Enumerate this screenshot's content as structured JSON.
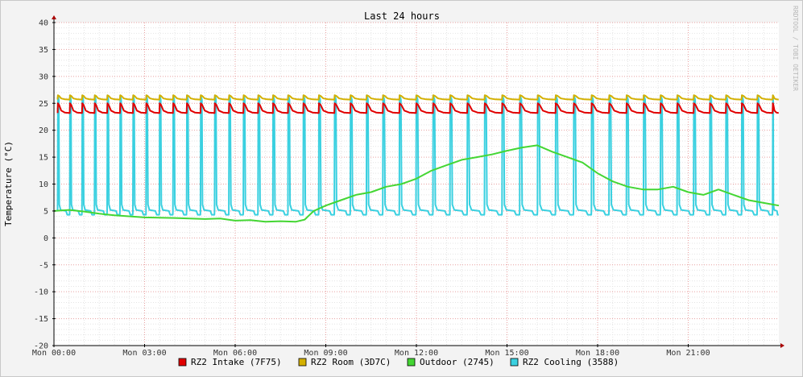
{
  "chart_data": {
    "type": "line",
    "title": "Last 24 hours",
    "ylabel": "Temperature (°C)",
    "watermark": "RRDTOOL / TOBI OETIKER",
    "ylim": [
      -20,
      40
    ],
    "y_ticks": [
      40,
      35,
      30,
      25,
      20,
      15,
      10,
      5,
      0,
      -5,
      -10,
      -15,
      -20
    ],
    "x_range_hours": [
      0,
      24
    ],
    "x_ticks": [
      {
        "h": 0,
        "label": "Mon 00:00"
      },
      {
        "h": 3,
        "label": "Mon 03:00"
      },
      {
        "h": 6,
        "label": "Mon 06:00"
      },
      {
        "h": 9,
        "label": "Mon 09:00"
      },
      {
        "h": 12,
        "label": "Mon 12:00"
      },
      {
        "h": 15,
        "label": "Mon 15:00"
      },
      {
        "h": 18,
        "label": "Mon 18:00"
      },
      {
        "h": 21,
        "label": "Mon 21:00"
      }
    ],
    "grid": true,
    "legend_position": "bottom",
    "series": [
      {
        "name": "RZ2 Intake (7F75)",
        "color": "#e00000",
        "sawtooth": {
          "cycle_hours": [
            [
              0,
              0.4
            ],
            [
              11,
              0.55
            ],
            [
              16.5,
              0.6
            ],
            [
              24,
              0.5
            ]
          ],
          "peak": 25.0,
          "base": 23.2
        }
      },
      {
        "name": "RZ2 Room (3D7C)",
        "color": "#d4b000",
        "sawtooth": {
          "cycle_hours": [
            [
              0,
              0.4
            ],
            [
              11,
              0.55
            ],
            [
              16.5,
              0.6
            ],
            [
              24,
              0.5
            ]
          ],
          "peak": 26.5,
          "base": 25.7
        }
      },
      {
        "name": "Outdoor (2745)",
        "color": "#44d633",
        "points": [
          [
            0,
            5.0
          ],
          [
            0.5,
            5.2
          ],
          [
            1,
            4.9
          ],
          [
            1.5,
            4.5
          ],
          [
            2,
            4.2
          ],
          [
            3,
            3.8
          ],
          [
            4,
            3.7
          ],
          [
            5,
            3.5
          ],
          [
            5.5,
            3.6
          ],
          [
            6,
            3.2
          ],
          [
            6.5,
            3.3
          ],
          [
            7,
            3.0
          ],
          [
            7.5,
            3.1
          ],
          [
            8,
            3.0
          ],
          [
            8.3,
            3.4
          ],
          [
            8.6,
            5.0
          ],
          [
            9,
            6.0
          ],
          [
            9.5,
            7.0
          ],
          [
            10,
            8.0
          ],
          [
            10.5,
            8.5
          ],
          [
            11,
            9.5
          ],
          [
            11.5,
            10.0
          ],
          [
            12,
            11.0
          ],
          [
            12.5,
            12.5
          ],
          [
            13,
            13.5
          ],
          [
            13.5,
            14.5
          ],
          [
            14,
            15.0
          ],
          [
            14.5,
            15.5
          ],
          [
            15,
            16.2
          ],
          [
            15.5,
            16.8
          ],
          [
            16,
            17.2
          ],
          [
            16.5,
            16.0
          ],
          [
            17,
            15.0
          ],
          [
            17.5,
            14.0
          ],
          [
            18,
            12.0
          ],
          [
            18.5,
            10.5
          ],
          [
            19,
            9.5
          ],
          [
            19.5,
            9.0
          ],
          [
            20,
            9.0
          ],
          [
            20.5,
            9.5
          ],
          [
            21,
            8.5
          ],
          [
            21.5,
            8.0
          ],
          [
            22,
            9.0
          ],
          [
            22.5,
            8.0
          ],
          [
            23,
            7.0
          ],
          [
            23.5,
            6.5
          ],
          [
            24,
            6.0
          ]
        ]
      },
      {
        "name": "RZ2 Cooling (3588)",
        "color": "#3ad0e0",
        "sawtooth": {
          "cycle_hours": [
            [
              0,
              0.4
            ],
            [
              11,
              0.55
            ],
            [
              16.5,
              0.6
            ],
            [
              24,
              0.5
            ]
          ],
          "peak": 26.5,
          "base": 5.0,
          "dip": 4.3
        }
      }
    ]
  }
}
